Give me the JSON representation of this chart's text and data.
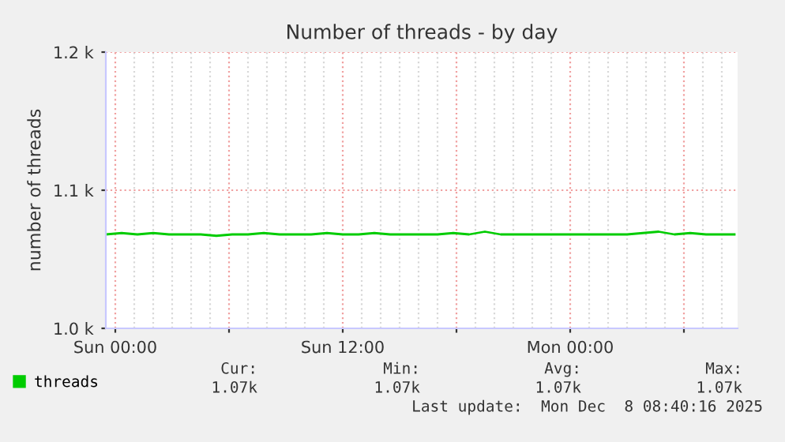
{
  "chart_data": {
    "type": "line",
    "title": "Number of threads - by day",
    "ylabel": "number of threads",
    "x": [
      "2025-12-06T23:30",
      "2025-12-07T00:20",
      "2025-12-07T01:10",
      "2025-12-07T02:00",
      "2025-12-07T02:50",
      "2025-12-07T03:40",
      "2025-12-07T04:30",
      "2025-12-07T05:20",
      "2025-12-07T06:10",
      "2025-12-07T07:00",
      "2025-12-07T07:50",
      "2025-12-07T08:40",
      "2025-12-07T09:30",
      "2025-12-07T10:20",
      "2025-12-07T11:10",
      "2025-12-07T12:00",
      "2025-12-07T12:50",
      "2025-12-07T13:40",
      "2025-12-07T14:30",
      "2025-12-07T15:20",
      "2025-12-07T16:10",
      "2025-12-07T17:00",
      "2025-12-07T17:50",
      "2025-12-07T18:40",
      "2025-12-07T19:30",
      "2025-12-07T20:20",
      "2025-12-07T21:10",
      "2025-12-07T22:00",
      "2025-12-07T22:50",
      "2025-12-07T23:40",
      "2025-12-08T00:30",
      "2025-12-08T01:20",
      "2025-12-08T02:10",
      "2025-12-08T03:00",
      "2025-12-08T03:50",
      "2025-12-08T04:40",
      "2025-12-08T05:30",
      "2025-12-08T06:20",
      "2025-12-08T07:10",
      "2025-12-08T08:00",
      "2025-12-08T08:40"
    ],
    "series": [
      {
        "name": "threads",
        "color": "#00cc00",
        "values": [
          1068,
          1069,
          1068,
          1069,
          1068,
          1068,
          1068,
          1067,
          1068,
          1068,
          1069,
          1068,
          1068,
          1068,
          1069,
          1068,
          1068,
          1069,
          1068,
          1068,
          1068,
          1068,
          1069,
          1068,
          1070,
          1068,
          1068,
          1068,
          1068,
          1068,
          1068,
          1068,
          1068,
          1068,
          1069,
          1070,
          1068,
          1069,
          1068,
          1068,
          1068
        ]
      }
    ],
    "xlim": [
      "2025-12-06T23:30",
      "2025-12-08T08:50"
    ],
    "xticks": [
      {
        "value": "2025-12-07T00:00",
        "label": "Sun 00:00"
      },
      {
        "value": "2025-12-07T06:00",
        "label": null
      },
      {
        "value": "2025-12-07T12:00",
        "label": "Sun 12:00"
      },
      {
        "value": "2025-12-07T18:00",
        "label": null
      },
      {
        "value": "2025-12-08T00:00",
        "label": "Mon 00:00"
      },
      {
        "value": "2025-12-08T06:00",
        "label": null
      }
    ],
    "ylim": [
      1000,
      1200
    ],
    "yticks": [
      {
        "value": 1000,
        "label": "1.0 k"
      },
      {
        "value": 1100,
        "label": "1.1 k"
      },
      {
        "value": 1200,
        "label": "1.2 k"
      }
    ],
    "grid": true,
    "legend": "bottom",
    "annotations": [
      "Cur:",
      "Min:",
      "Avg:",
      "Max:",
      "1.07k",
      "1.07k",
      "1.07k",
      "1.07k",
      "Last update:  Mon Dec  8 08:40:16 2025"
    ]
  }
}
